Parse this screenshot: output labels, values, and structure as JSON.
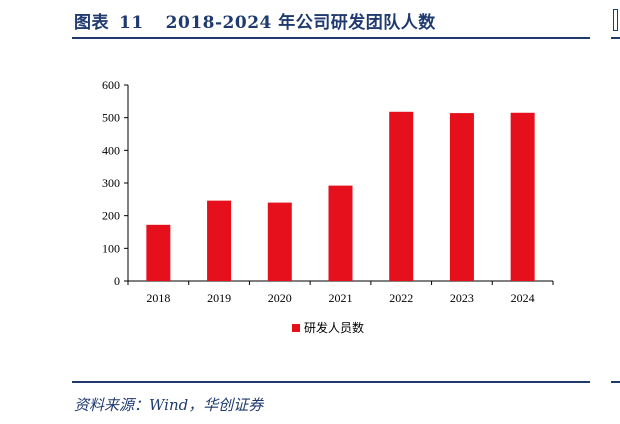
{
  "header": {
    "figure_label": "图表",
    "figure_number": "11",
    "figure_title": "2018-2024 年公司研发团队人数"
  },
  "footer": {
    "source": "资料来源：Wind，华创证券"
  },
  "colors": {
    "bar": "#e5101c",
    "rule": "#1f3a6e"
  },
  "chart_data": {
    "type": "bar",
    "categories": [
      "2018",
      "2019",
      "2020",
      "2021",
      "2022",
      "2023",
      "2024"
    ],
    "series": [
      {
        "name": "研发人员数",
        "values": [
          172,
          246,
          240,
          292,
          518,
          514,
          515
        ]
      }
    ],
    "ylim": [
      0,
      600
    ],
    "yticks": [
      0,
      100,
      200,
      300,
      400,
      500,
      600
    ],
    "grid": false,
    "legend": "bottom-center"
  }
}
